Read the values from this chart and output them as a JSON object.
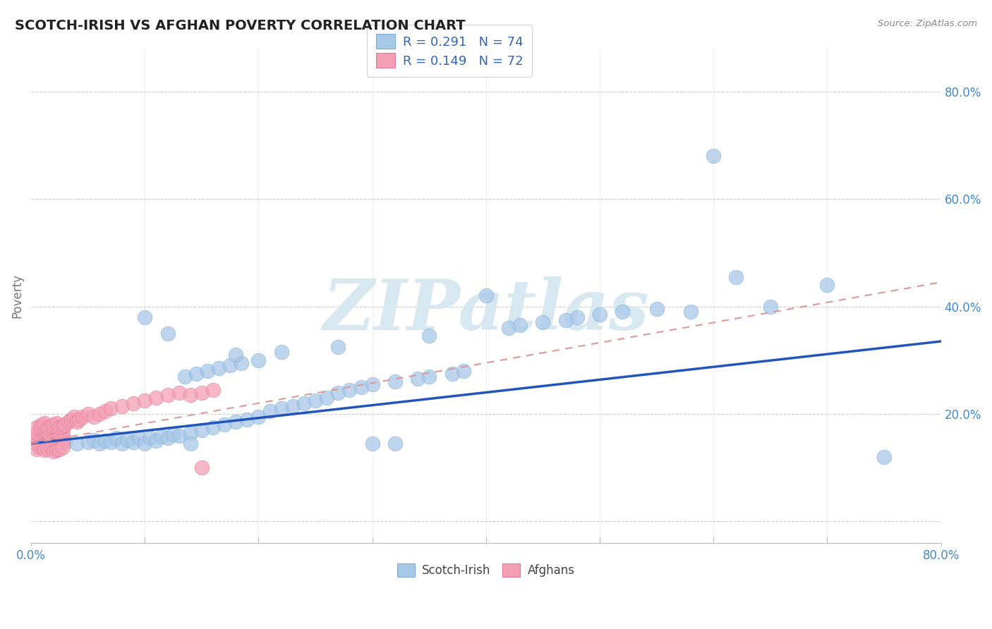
{
  "title": "SCOTCH-IRISH VS AFGHAN POVERTY CORRELATION CHART",
  "source": "Source: ZipAtlas.com",
  "ylabel": "Poverty",
  "xlim": [
    0.0,
    0.8
  ],
  "ylim": [
    -0.04,
    0.88
  ],
  "ytick_vals": [
    0.0,
    0.2,
    0.4,
    0.6,
    0.8
  ],
  "scotch_irish_color": "#a8c8e8",
  "scotch_irish_edge": "#7aaed4",
  "afghan_color": "#f4a0b4",
  "afghan_edge": "#e07898",
  "trend_scotch_color": "#2255bb",
  "trend_afghan_color": "#dd9999",
  "watermark": "ZIPatlas",
  "legend_r1": "R = 0.291",
  "legend_n1": "N = 74",
  "legend_r2": "R = 0.149",
  "legend_n2": "N = 72",
  "trend_scotch_x0": 0.0,
  "trend_scotch_y0": 0.145,
  "trend_scotch_x1": 0.8,
  "trend_scotch_y1": 0.335,
  "trend_afghan_x0": 0.0,
  "trend_afghan_y0": 0.145,
  "trend_afghan_x1": 0.8,
  "trend_afghan_y1": 0.445,
  "scotch_x": [
    0.01,
    0.02,
    0.03,
    0.04,
    0.05,
    0.055,
    0.06,
    0.065,
    0.07,
    0.075,
    0.08,
    0.085,
    0.09,
    0.095,
    0.1,
    0.105,
    0.11,
    0.115,
    0.12,
    0.125,
    0.13,
    0.135,
    0.14,
    0.145,
    0.15,
    0.155,
    0.16,
    0.165,
    0.17,
    0.175,
    0.18,
    0.185,
    0.19,
    0.2,
    0.21,
    0.22,
    0.23,
    0.24,
    0.25,
    0.26,
    0.27,
    0.28,
    0.29,
    0.3,
    0.32,
    0.34,
    0.35,
    0.37,
    0.38,
    0.4,
    0.42,
    0.43,
    0.45,
    0.47,
    0.48,
    0.5,
    0.52,
    0.55,
    0.58,
    0.6,
    0.62,
    0.65,
    0.7,
    0.75,
    0.1,
    0.12,
    0.14,
    0.2,
    0.3,
    0.32,
    0.18,
    0.22,
    0.27,
    0.35
  ],
  "scotch_y": [
    0.155,
    0.15,
    0.148,
    0.145,
    0.148,
    0.152,
    0.145,
    0.15,
    0.148,
    0.155,
    0.145,
    0.152,
    0.148,
    0.155,
    0.145,
    0.155,
    0.15,
    0.158,
    0.155,
    0.162,
    0.16,
    0.27,
    0.165,
    0.275,
    0.17,
    0.28,
    0.175,
    0.285,
    0.18,
    0.29,
    0.185,
    0.295,
    0.19,
    0.195,
    0.205,
    0.21,
    0.215,
    0.22,
    0.225,
    0.23,
    0.24,
    0.245,
    0.25,
    0.255,
    0.26,
    0.265,
    0.27,
    0.275,
    0.28,
    0.42,
    0.36,
    0.365,
    0.37,
    0.375,
    0.38,
    0.385,
    0.39,
    0.395,
    0.39,
    0.68,
    0.455,
    0.4,
    0.44,
    0.12,
    0.38,
    0.35,
    0.145,
    0.3,
    0.145,
    0.145,
    0.31,
    0.315,
    0.325,
    0.345
  ],
  "afghan_x": [
    0.005,
    0.008,
    0.01,
    0.012,
    0.015,
    0.018,
    0.02,
    0.022,
    0.025,
    0.028,
    0.005,
    0.008,
    0.01,
    0.012,
    0.015,
    0.018,
    0.02,
    0.022,
    0.025,
    0.028,
    0.005,
    0.008,
    0.01,
    0.012,
    0.015,
    0.018,
    0.02,
    0.022,
    0.025,
    0.028,
    0.005,
    0.008,
    0.01,
    0.012,
    0.015,
    0.018,
    0.02,
    0.022,
    0.025,
    0.028,
    0.005,
    0.008,
    0.01,
    0.012,
    0.015,
    0.018,
    0.02,
    0.022,
    0.025,
    0.028,
    0.03,
    0.033,
    0.035,
    0.038,
    0.04,
    0.042,
    0.045,
    0.05,
    0.055,
    0.06,
    0.065,
    0.07,
    0.08,
    0.09,
    0.1,
    0.11,
    0.12,
    0.13,
    0.14,
    0.15,
    0.16,
    0.15
  ],
  "afghan_y": [
    0.155,
    0.158,
    0.16,
    0.163,
    0.155,
    0.158,
    0.16,
    0.163,
    0.155,
    0.158,
    0.145,
    0.148,
    0.15,
    0.153,
    0.145,
    0.148,
    0.15,
    0.153,
    0.145,
    0.148,
    0.135,
    0.138,
    0.14,
    0.133,
    0.135,
    0.138,
    0.13,
    0.133,
    0.135,
    0.138,
    0.165,
    0.168,
    0.17,
    0.173,
    0.165,
    0.168,
    0.17,
    0.173,
    0.165,
    0.168,
    0.175,
    0.178,
    0.18,
    0.183,
    0.175,
    0.178,
    0.18,
    0.183,
    0.175,
    0.178,
    0.18,
    0.185,
    0.19,
    0.195,
    0.185,
    0.19,
    0.195,
    0.2,
    0.195,
    0.2,
    0.205,
    0.21,
    0.215,
    0.22,
    0.225,
    0.23,
    0.235,
    0.24,
    0.235,
    0.24,
    0.245,
    0.1
  ]
}
